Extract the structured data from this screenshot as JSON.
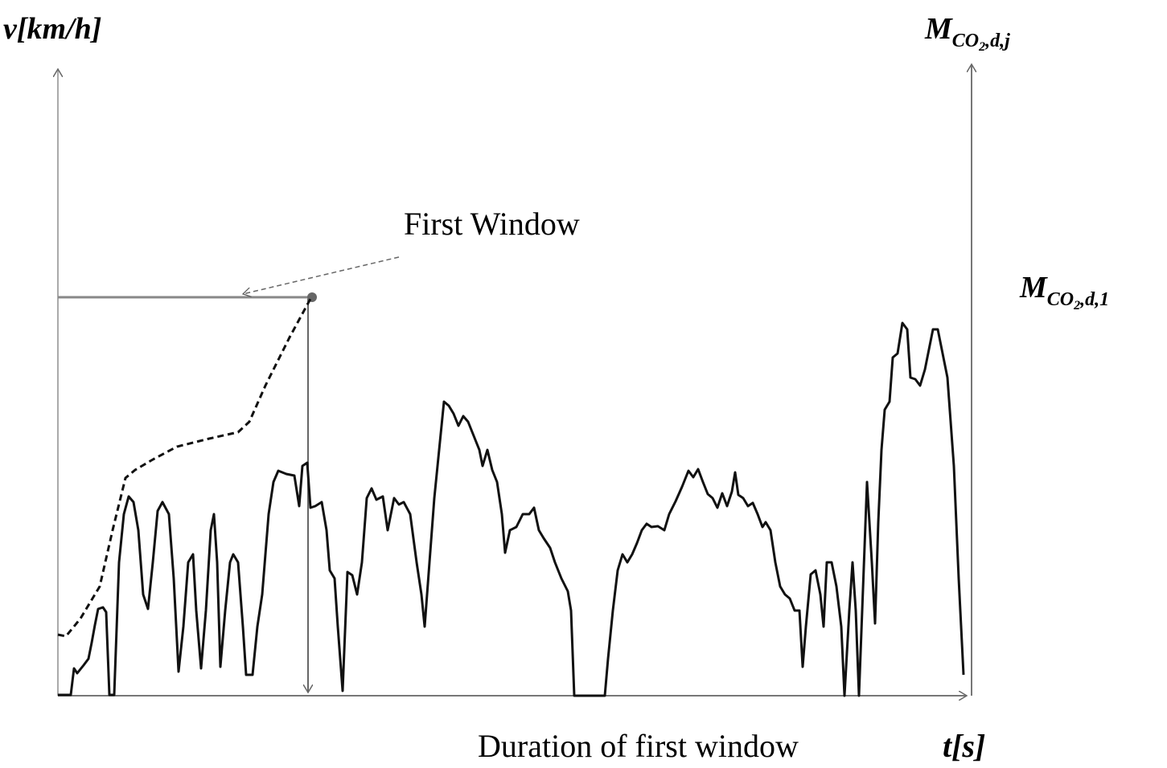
{
  "y_axis_label": "v[km/h]",
  "right_axis_label": {
    "main": "M",
    "sub": "CO",
    "sub_index": "2",
    "sub_tail": ",d,j"
  },
  "window_label": "First Window",
  "window_value_label": {
    "main": "M",
    "sub": "CO",
    "sub_index": "2",
    "sub_tail": ",d,1"
  },
  "duration_label": "Duration of first window",
  "x_axis_label": "t[s]"
}
